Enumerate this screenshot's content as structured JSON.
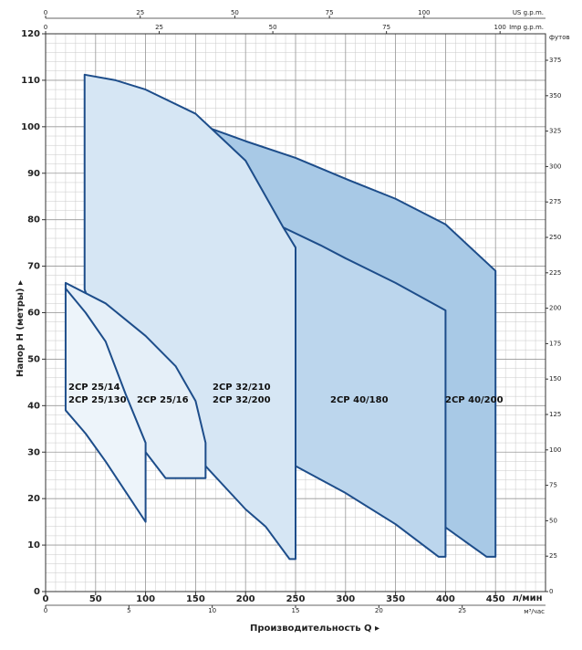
{
  "chart_data": {
    "type": "region",
    "y_label": "Напор H (метры) ▸",
    "x_label": "Производительность Q ▸",
    "x_unit": "л/мин",
    "xlim": [
      0,
      500
    ],
    "xticks": [
      0,
      50,
      100,
      150,
      200,
      250,
      300,
      350,
      400,
      450
    ],
    "ylim": [
      0,
      120
    ],
    "yticks": [
      0,
      10,
      20,
      30,
      40,
      50,
      60,
      70,
      80,
      90,
      100,
      110,
      120
    ],
    "y2_label": "футов",
    "y2lim": [
      0,
      393.7
    ],
    "y2ticks": [
      0,
      25,
      50,
      75,
      100,
      125,
      150,
      175,
      200,
      225,
      250,
      275,
      300,
      325,
      350,
      375
    ],
    "x_us": {
      "label": "US g.p.m.",
      "lim": [
        0,
        132.1
      ],
      "ticks": [
        0,
        25,
        50,
        75,
        100
      ]
    },
    "x_imp": {
      "label": "Imp g.p.m.",
      "lim": [
        0,
        110
      ],
      "ticks": [
        0,
        25,
        50,
        75,
        100
      ]
    },
    "x_m3h": {
      "label": "м³/час",
      "lim": [
        0,
        30
      ],
      "ticks": [
        0,
        5,
        10,
        15,
        20,
        25
      ]
    },
    "grid": true,
    "regions": [
      {
        "names": [
          "2CP 40/200"
        ],
        "color": "#a8c9e6",
        "x": [
          150,
          200,
          250,
          300,
          350,
          400,
          450,
          450,
          441,
          400,
          300,
          250,
          237,
          150
        ],
        "y": [
          100.8,
          96.9,
          93.3,
          88.8,
          84.5,
          79,
          69,
          7.5,
          7.5,
          13.8,
          25,
          27,
          78.4,
          100.8
        ]
      },
      {
        "names": [
          "2CP 40/180"
        ],
        "color": "#bcd6ed",
        "x": [
          237,
          275,
          300,
          350,
          400,
          400,
          393,
          350,
          300,
          250,
          250
        ],
        "y": [
          78.4,
          74.5,
          71.7,
          66.4,
          60.5,
          7.5,
          7.5,
          14.5,
          21.2,
          27,
          74
        ]
      },
      {
        "names": [
          "2CP 32/210",
          "2CP 32/200"
        ],
        "color": "#d6e6f4",
        "x": [
          39,
          70,
          100,
          150,
          200,
          237,
          250,
          250,
          244,
          220,
          200,
          160,
          100,
          39
        ],
        "y": [
          111.2,
          110,
          108,
          102.8,
          92.7,
          78.6,
          74,
          7,
          7,
          14,
          17.7,
          27,
          30,
          65
        ]
      },
      {
        "names": [
          "2CP 25/16"
        ],
        "color": "#e5eff8",
        "x": [
          20,
          60,
          100,
          130,
          150,
          160,
          160,
          120,
          100,
          20
        ],
        "y": [
          66.4,
          62,
          55,
          48.5,
          41,
          32,
          24.4,
          24.4,
          30,
          65
        ]
      },
      {
        "names": [
          "2CP 25/14",
          "2CP 25/130"
        ],
        "color": "#edf4fa",
        "x": [
          20,
          40,
          60,
          80,
          100,
          100,
          80,
          60,
          40,
          20
        ],
        "y": [
          65.2,
          60,
          53.8,
          42.5,
          32,
          15,
          21.5,
          28,
          34,
          39
        ]
      }
    ]
  }
}
